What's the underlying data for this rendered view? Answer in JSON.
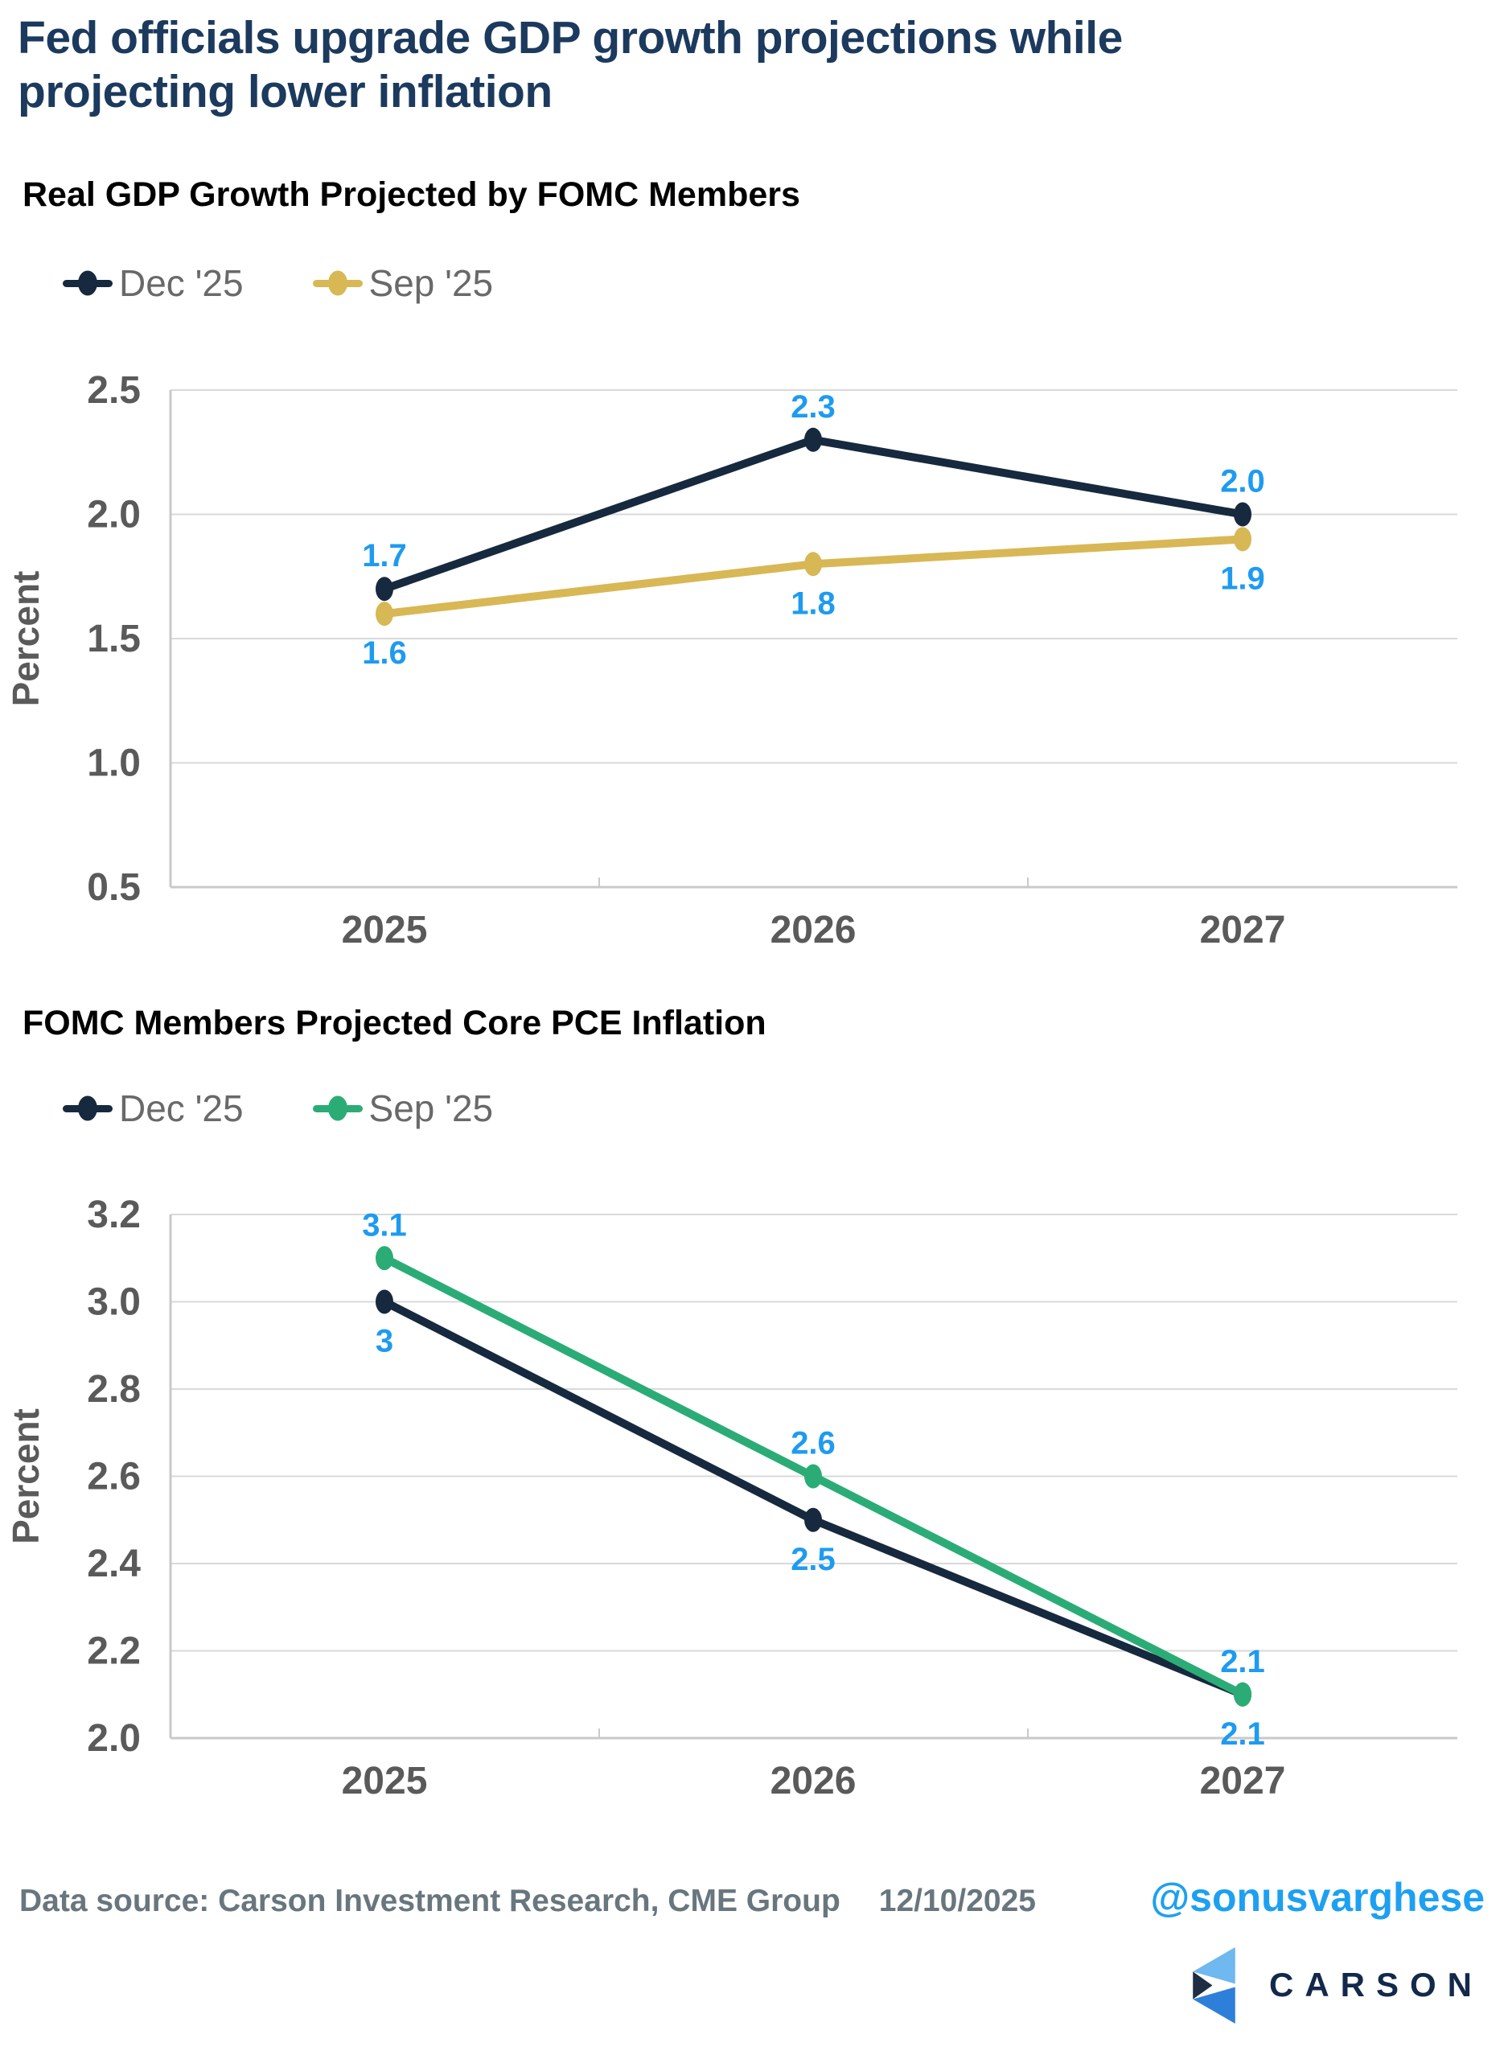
{
  "header": {
    "title_line1": "Fed officials upgrade GDP growth projections while",
    "title_line2": "projecting lower inflation"
  },
  "colors": {
    "title_navy": "#1C3A5E",
    "subtitle_black": "#000000",
    "axis_text": "#5A5A5A",
    "legend_text": "#696969",
    "grid": "#D9D9D9",
    "axis_line": "#C9C9C9",
    "navy": "#16293E",
    "gold": "#D8B755",
    "green": "#2BAC76",
    "data_label_blue": "#1E9BF0",
    "footer_gray": "#68767E",
    "handle_blue": "#1DA0F2",
    "logo_light_blue": "#6FB8F0",
    "logo_mid_blue": "#2E7FD9",
    "logo_navy": "#1E2F44",
    "logo_text_navy": "#13294B"
  },
  "chart_data": [
    {
      "type": "line",
      "title": "Real GDP Growth Projected by FOMC Members",
      "ylabel": "Percent",
      "xlabel": "",
      "categories": [
        "2025",
        "2026",
        "2027"
      ],
      "ylim": [
        0.5,
        2.5
      ],
      "yticks": [
        "2.5",
        "2.0",
        "1.5",
        "1.0",
        "0.5"
      ],
      "grid": true,
      "legend_position": "top-left",
      "series": [
        {
          "name": "Dec '25",
          "color_key": "navy",
          "values": [
            1.7,
            2.3,
            2.0
          ],
          "labels": [
            "1.7",
            "2.3",
            "2.0"
          ],
          "label_position": "above"
        },
        {
          "name": "Sep '25",
          "color_key": "gold",
          "values": [
            1.6,
            1.8,
            1.9
          ],
          "labels": [
            "1.6",
            "1.8",
            "1.9"
          ],
          "label_position": "below"
        }
      ]
    },
    {
      "type": "line",
      "title": "FOMC Members Projected Core PCE Inflation",
      "ylabel": "Percent",
      "xlabel": "",
      "categories": [
        "2025",
        "2026",
        "2027"
      ],
      "ylim": [
        2.0,
        3.2
      ],
      "yticks": [
        "3.2",
        "3.0",
        "2.8",
        "2.6",
        "2.4",
        "2.2",
        "2.0"
      ],
      "grid": true,
      "legend_position": "top-left",
      "series": [
        {
          "name": "Dec '25",
          "color_key": "navy",
          "values": [
            3.0,
            2.5,
            2.1
          ],
          "labels": [
            "3",
            "2.5",
            "2.1"
          ],
          "label_position": "below"
        },
        {
          "name": "Sep '25",
          "color_key": "green",
          "values": [
            3.1,
            2.6,
            2.1
          ],
          "labels": [
            "3.1",
            "2.6",
            "2.1"
          ],
          "label_position": "above"
        }
      ]
    }
  ],
  "footer": {
    "source": "Data source: Carson Investment Research, CME Group",
    "date": "12/10/2025",
    "handle": "@sonusvarghese",
    "logo_text": "CARSON"
  }
}
